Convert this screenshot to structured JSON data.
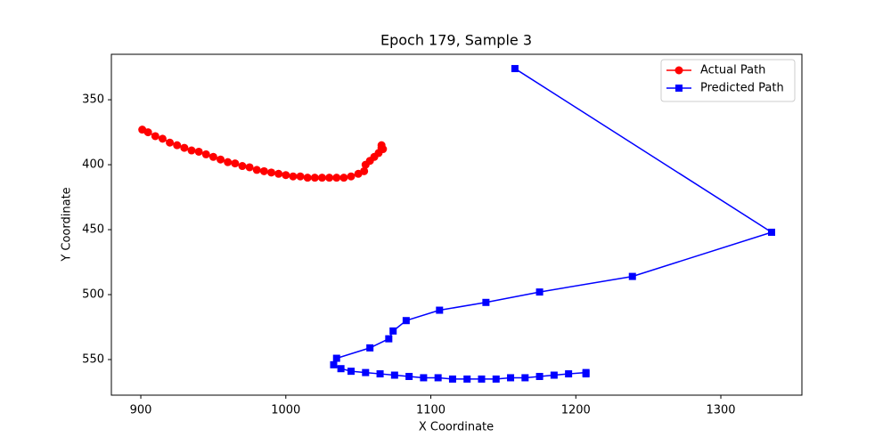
{
  "chart_data": {
    "type": "line",
    "title": "Epoch 179, Sample 3",
    "x_label": "X Coordinate",
    "y_label": "Y Coordinate",
    "xlim": [
      879.7,
      1355.9
    ],
    "ylim": [
      577.4,
      315
    ],
    "xticks": [
      900,
      1000,
      1100,
      1200,
      1300
    ],
    "yticks": [
      350,
      400,
      450,
      500,
      550
    ],
    "grid": false,
    "legend": "upper right",
    "series": [
      {
        "name": "Actual Path",
        "color": "#ff0000",
        "marker": "circle",
        "x": [
          901,
          905,
          910,
          915,
          920,
          925,
          930,
          935,
          940,
          945,
          950,
          955,
          960,
          965,
          970,
          975,
          980,
          985,
          990,
          995,
          1000,
          1005,
          1010,
          1015,
          1020,
          1025,
          1030,
          1035,
          1040,
          1045,
          1050,
          1054,
          1055,
          1058,
          1061,
          1064,
          1066,
          1066,
          1067
        ],
        "values": [
          373,
          375,
          378,
          380,
          383,
          385,
          387,
          389,
          390,
          392,
          394,
          396,
          398,
          399,
          401,
          402,
          404,
          405,
          406,
          407,
          408,
          409,
          409,
          410,
          410,
          410,
          410,
          410,
          410,
          409,
          407,
          405,
          400,
          397,
          394,
          391,
          387,
          385,
          388
        ]
      },
      {
        "name": "Predicted Path",
        "color": "#0000ff",
        "marker": "square",
        "x": [
          1158,
          1335,
          1239,
          1175,
          1138,
          1106,
          1083,
          1074,
          1071,
          1058,
          1035,
          1033,
          1038,
          1045,
          1055,
          1065,
          1075,
          1085,
          1095,
          1105,
          1115,
          1125,
          1135,
          1145,
          1155,
          1165,
          1175,
          1185,
          1195,
          1207,
          1207
        ],
        "values": [
          326,
          452,
          486,
          498,
          506,
          512,
          520,
          528,
          534,
          541,
          549,
          554,
          557,
          559,
          560,
          561,
          562,
          563,
          564,
          564,
          565,
          565,
          565,
          565,
          564,
          564,
          563,
          562,
          561,
          560,
          561
        ]
      }
    ]
  }
}
